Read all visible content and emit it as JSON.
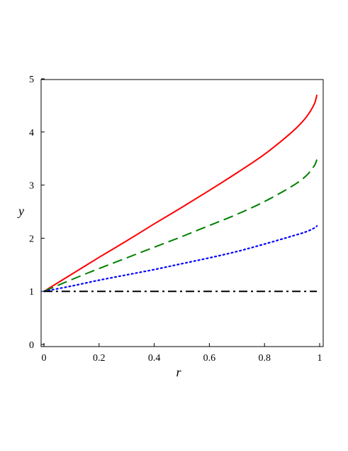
{
  "chart_data": {
    "type": "line",
    "title": "",
    "xlabel": "r",
    "ylabel": "y",
    "xlim": [
      0,
      1
    ],
    "ylim": [
      0,
      5
    ],
    "xticks": [
      "0",
      "0.2",
      "0.4",
      "0.6",
      "0.8",
      "1"
    ],
    "yticks": [
      "0",
      "1",
      "2",
      "3",
      "4",
      "5"
    ],
    "grid": false,
    "legend": "none",
    "series": [
      {
        "color": "#ff0000",
        "dash": "solid",
        "x": [
          0,
          0.1,
          0.2,
          0.3,
          0.4,
          0.5,
          0.6,
          0.7,
          0.8,
          0.9,
          0.95,
          0.98,
          0.99
        ],
        "y": [
          1.0,
          1.32,
          1.64,
          1.95,
          2.27,
          2.58,
          2.9,
          3.23,
          3.58,
          4.0,
          4.27,
          4.52,
          4.7
        ]
      },
      {
        "color": "#008000",
        "dash": "dashed",
        "x": [
          0,
          0.1,
          0.2,
          0.3,
          0.4,
          0.5,
          0.6,
          0.7,
          0.8,
          0.9,
          0.95,
          0.98,
          0.99
        ],
        "y": [
          1.0,
          1.22,
          1.43,
          1.63,
          1.83,
          2.03,
          2.24,
          2.45,
          2.69,
          2.98,
          3.17,
          3.36,
          3.48
        ]
      },
      {
        "color": "#0000ff",
        "dash": "dotted",
        "x": [
          0,
          0.1,
          0.2,
          0.3,
          0.4,
          0.5,
          0.6,
          0.7,
          0.8,
          0.9,
          0.95,
          0.98,
          0.99
        ],
        "y": [
          1.0,
          1.1,
          1.21,
          1.31,
          1.41,
          1.52,
          1.63,
          1.75,
          1.89,
          2.04,
          2.12,
          2.19,
          2.23
        ]
      },
      {
        "color": "#000000",
        "dash": "dashdot",
        "x": [
          0,
          0.99
        ],
        "y": [
          1.0,
          1.0
        ]
      }
    ]
  }
}
